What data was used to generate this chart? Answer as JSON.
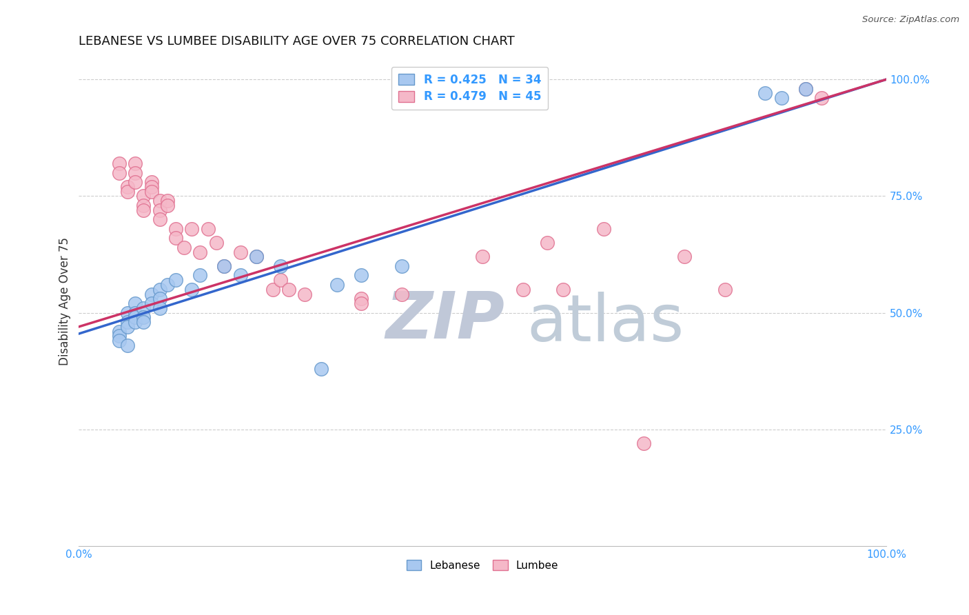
{
  "title": "LEBANESE VS LUMBEE DISABILITY AGE OVER 75 CORRELATION CHART",
  "source": "Source: ZipAtlas.com",
  "ylabel": "Disability Age Over 75",
  "xlim": [
    0.0,
    1.0
  ],
  "ylim": [
    0.0,
    1.05
  ],
  "ytick_labels": [
    "25.0%",
    "50.0%",
    "75.0%",
    "100.0%"
  ],
  "ytick_values": [
    0.25,
    0.5,
    0.75,
    1.0
  ],
  "legend_blue_label": "R = 0.425   N = 34",
  "legend_pink_label": "R = 0.479   N = 45",
  "lebanese_color": "#A8C8F0",
  "lumbee_color": "#F5B8C8",
  "lebanese_edge_color": "#6699CC",
  "lumbee_edge_color": "#E07090",
  "trendline_blue": "#3366CC",
  "trendline_pink": "#CC3366",
  "background_color": "#FFFFFF",
  "grid_color": "#CCCCCC",
  "lebanese_x": [
    0.05,
    0.05,
    0.05,
    0.06,
    0.06,
    0.06,
    0.06,
    0.07,
    0.07,
    0.07,
    0.07,
    0.08,
    0.08,
    0.08,
    0.09,
    0.09,
    0.1,
    0.1,
    0.1,
    0.11,
    0.12,
    0.14,
    0.15,
    0.18,
    0.2,
    0.22,
    0.25,
    0.3,
    0.32,
    0.35,
    0.4,
    0.85,
    0.87,
    0.9
  ],
  "lebanese_y": [
    0.46,
    0.45,
    0.44,
    0.5,
    0.48,
    0.47,
    0.43,
    0.52,
    0.5,
    0.49,
    0.48,
    0.51,
    0.49,
    0.48,
    0.54,
    0.52,
    0.55,
    0.53,
    0.51,
    0.56,
    0.57,
    0.55,
    0.58,
    0.6,
    0.58,
    0.62,
    0.6,
    0.38,
    0.56,
    0.58,
    0.6,
    0.97,
    0.96,
    0.98
  ],
  "lumbee_x": [
    0.05,
    0.05,
    0.06,
    0.06,
    0.07,
    0.07,
    0.07,
    0.08,
    0.08,
    0.08,
    0.09,
    0.09,
    0.09,
    0.1,
    0.1,
    0.1,
    0.11,
    0.11,
    0.12,
    0.12,
    0.13,
    0.14,
    0.15,
    0.16,
    0.17,
    0.18,
    0.2,
    0.22,
    0.24,
    0.25,
    0.26,
    0.28,
    0.35,
    0.35,
    0.4,
    0.5,
    0.55,
    0.58,
    0.6,
    0.65,
    0.7,
    0.75,
    0.8,
    0.9,
    0.92
  ],
  "lumbee_y": [
    0.82,
    0.8,
    0.77,
    0.76,
    0.82,
    0.8,
    0.78,
    0.75,
    0.73,
    0.72,
    0.78,
    0.77,
    0.76,
    0.74,
    0.72,
    0.7,
    0.74,
    0.73,
    0.68,
    0.66,
    0.64,
    0.68,
    0.63,
    0.68,
    0.65,
    0.6,
    0.63,
    0.62,
    0.55,
    0.57,
    0.55,
    0.54,
    0.53,
    0.52,
    0.54,
    0.62,
    0.55,
    0.65,
    0.55,
    0.68,
    0.22,
    0.62,
    0.55,
    0.98,
    0.96
  ],
  "blue_trend_y_start": 0.455,
  "blue_trend_y_end": 1.0,
  "pink_trend_y_start": 0.47,
  "pink_trend_y_end": 1.0,
  "watermark_zip_color": "#C0C8D8",
  "watermark_atlas_color": "#C0CCD8"
}
